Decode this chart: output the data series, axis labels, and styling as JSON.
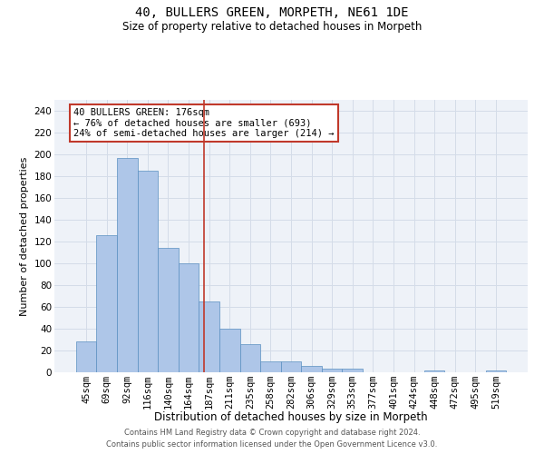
{
  "title": "40, BULLERS GREEN, MORPETH, NE61 1DE",
  "subtitle": "Size of property relative to detached houses in Morpeth",
  "xlabel": "Distribution of detached houses by size in Morpeth",
  "ylabel": "Number of detached properties",
  "bar_labels": [
    "45sqm",
    "69sqm",
    "92sqm",
    "116sqm",
    "140sqm",
    "164sqm",
    "187sqm",
    "211sqm",
    "235sqm",
    "258sqm",
    "282sqm",
    "306sqm",
    "329sqm",
    "353sqm",
    "377sqm",
    "401sqm",
    "424sqm",
    "448sqm",
    "472sqm",
    "495sqm",
    "519sqm"
  ],
  "bar_values": [
    28,
    126,
    197,
    185,
    114,
    100,
    65,
    40,
    26,
    10,
    10,
    6,
    3,
    3,
    0,
    0,
    0,
    2,
    0,
    0,
    2
  ],
  "bar_color": "#aec6e8",
  "bar_edgecolor": "#5a8fc0",
  "vline_x_index": 5.77,
  "vline_color": "#c0392b",
  "annotation_line1": "40 BULLERS GREEN: 176sqm",
  "annotation_line2": "← 76% of detached houses are smaller (693)",
  "annotation_line3": "24% of semi-detached houses are larger (214) →",
  "annotation_box_color": "#c0392b",
  "ylim": [
    0,
    250
  ],
  "yticks": [
    0,
    20,
    40,
    60,
    80,
    100,
    120,
    140,
    160,
    180,
    200,
    220,
    240
  ],
  "grid_color": "#d4dce8",
  "bg_color": "#eef2f8",
  "footer1": "Contains HM Land Registry data © Crown copyright and database right 2024.",
  "footer2": "Contains public sector information licensed under the Open Government Licence v3.0.",
  "title_fontsize": 10,
  "subtitle_fontsize": 8.5,
  "xlabel_fontsize": 8.5,
  "ylabel_fontsize": 8,
  "tick_fontsize": 7.5,
  "annotation_fontsize": 7.5,
  "footer_fontsize": 6
}
